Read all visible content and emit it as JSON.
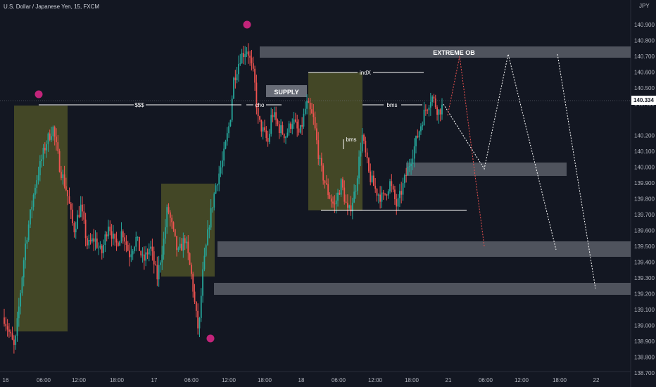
{
  "header": {
    "symbol_title": "U.S. Dollar / Japanese Yen, 15, FXCM",
    "currency": "JPY"
  },
  "colors": {
    "background": "#131722",
    "bull": "#26a69a",
    "bear": "#ef5350",
    "zone_olive": "#6b6f2a",
    "zone_gray": "#787b86",
    "marker": "#c2247a",
    "price_tag": "#ffffff"
  },
  "chart_data": {
    "type": "candlestick",
    "y_axis": {
      "min": 138.7,
      "max": 141.0,
      "ticks": [
        140.9,
        140.8,
        140.7,
        140.6,
        140.5,
        140.4,
        140.2,
        140.1,
        140.0,
        139.9,
        139.8,
        139.7,
        139.6,
        139.5,
        139.4,
        139.3,
        139.2,
        139.1,
        139.0,
        138.9,
        138.8,
        138.7
      ],
      "tick_labels": [
        "140.900",
        "140.800",
        "140.700",
        "140.600",
        "140.500",
        "140.400",
        "140.200",
        "140.100",
        "140.000",
        "139.900",
        "139.800",
        "139.700",
        "139.600",
        "139.500",
        "139.400",
        "139.300",
        "139.200",
        "139.100",
        "139.000",
        "138.900",
        "138.800",
        "138.700"
      ]
    },
    "x_axis": {
      "tick_labels": [
        "16",
        "06:00",
        "12:00",
        "18:00",
        "17",
        "06:00",
        "12:00",
        "18:00",
        "18",
        "06:00",
        "12:00",
        "18:00",
        "21",
        "06:00",
        "12:00",
        "18:00",
        "22"
      ]
    },
    "current_price": "140.334",
    "price_path": [
      [
        0,
        139.05
      ],
      [
        3,
        138.85
      ],
      [
        6,
        139.5
      ],
      [
        9,
        139.9
      ],
      [
        12,
        140.15
      ],
      [
        14,
        140.25
      ],
      [
        16,
        140.0
      ],
      [
        18,
        139.85
      ],
      [
        20,
        139.6
      ],
      [
        22,
        139.75
      ],
      [
        24,
        139.5
      ],
      [
        26,
        139.55
      ],
      [
        28,
        139.45
      ],
      [
        30,
        139.65
      ],
      [
        32,
        139.5
      ],
      [
        34,
        139.6
      ],
      [
        36,
        139.45
      ],
      [
        38,
        139.55
      ],
      [
        40,
        139.4
      ],
      [
        42,
        139.5
      ],
      [
        44,
        139.3
      ],
      [
        46,
        139.55
      ],
      [
        47,
        139.75
      ],
      [
        48,
        139.65
      ],
      [
        50,
        139.45
      ],
      [
        52,
        139.55
      ],
      [
        54,
        139.3
      ],
      [
        55,
        139.1
      ],
      [
        56,
        138.95
      ],
      [
        57,
        139.3
      ],
      [
        59,
        139.65
      ],
      [
        61,
        139.9
      ],
      [
        63,
        140.05
      ],
      [
        65,
        140.3
      ],
      [
        66,
        140.55
      ],
      [
        68,
        140.7
      ],
      [
        70,
        140.75
      ],
      [
        72,
        140.55
      ],
      [
        73,
        140.3
      ],
      [
        74,
        140.25
      ],
      [
        76,
        140.15
      ],
      [
        77,
        140.35
      ],
      [
        79,
        140.25
      ],
      [
        81,
        140.2
      ],
      [
        83,
        140.3
      ],
      [
        85,
        140.2
      ],
      [
        87,
        140.4
      ],
      [
        89,
        140.3
      ],
      [
        91,
        140.0
      ],
      [
        93,
        139.85
      ],
      [
        95,
        139.75
      ],
      [
        97,
        139.9
      ],
      [
        99,
        139.7
      ],
      [
        101,
        139.85
      ],
      [
        103,
        140.2
      ],
      [
        105,
        139.95
      ],
      [
        107,
        139.85
      ],
      [
        109,
        139.8
      ],
      [
        111,
        139.9
      ],
      [
        113,
        139.75
      ],
      [
        115,
        139.9
      ],
      [
        117,
        140.05
      ],
      [
        119,
        140.2
      ],
      [
        121,
        140.35
      ],
      [
        123,
        140.45
      ],
      [
        125,
        140.35
      ],
      [
        126,
        140.38
      ]
    ],
    "zones": [
      {
        "kind": "olive",
        "x0": 0.12,
        "x1": 0.38,
        "y0": 140.28,
        "y1": 138.88
      },
      {
        "kind": "olive",
        "x0": 0.0,
        "x1": 0.0,
        "y0": 0,
        "y1": 0
      }
    ],
    "annotations": {
      "liquidity": "$$$",
      "choch": "cho",
      "supply": "SUPPLY",
      "indx": "indX",
      "bms_upper": "bms",
      "bms_lower": "bms",
      "extreme_ob": "EXTREME OB"
    }
  }
}
